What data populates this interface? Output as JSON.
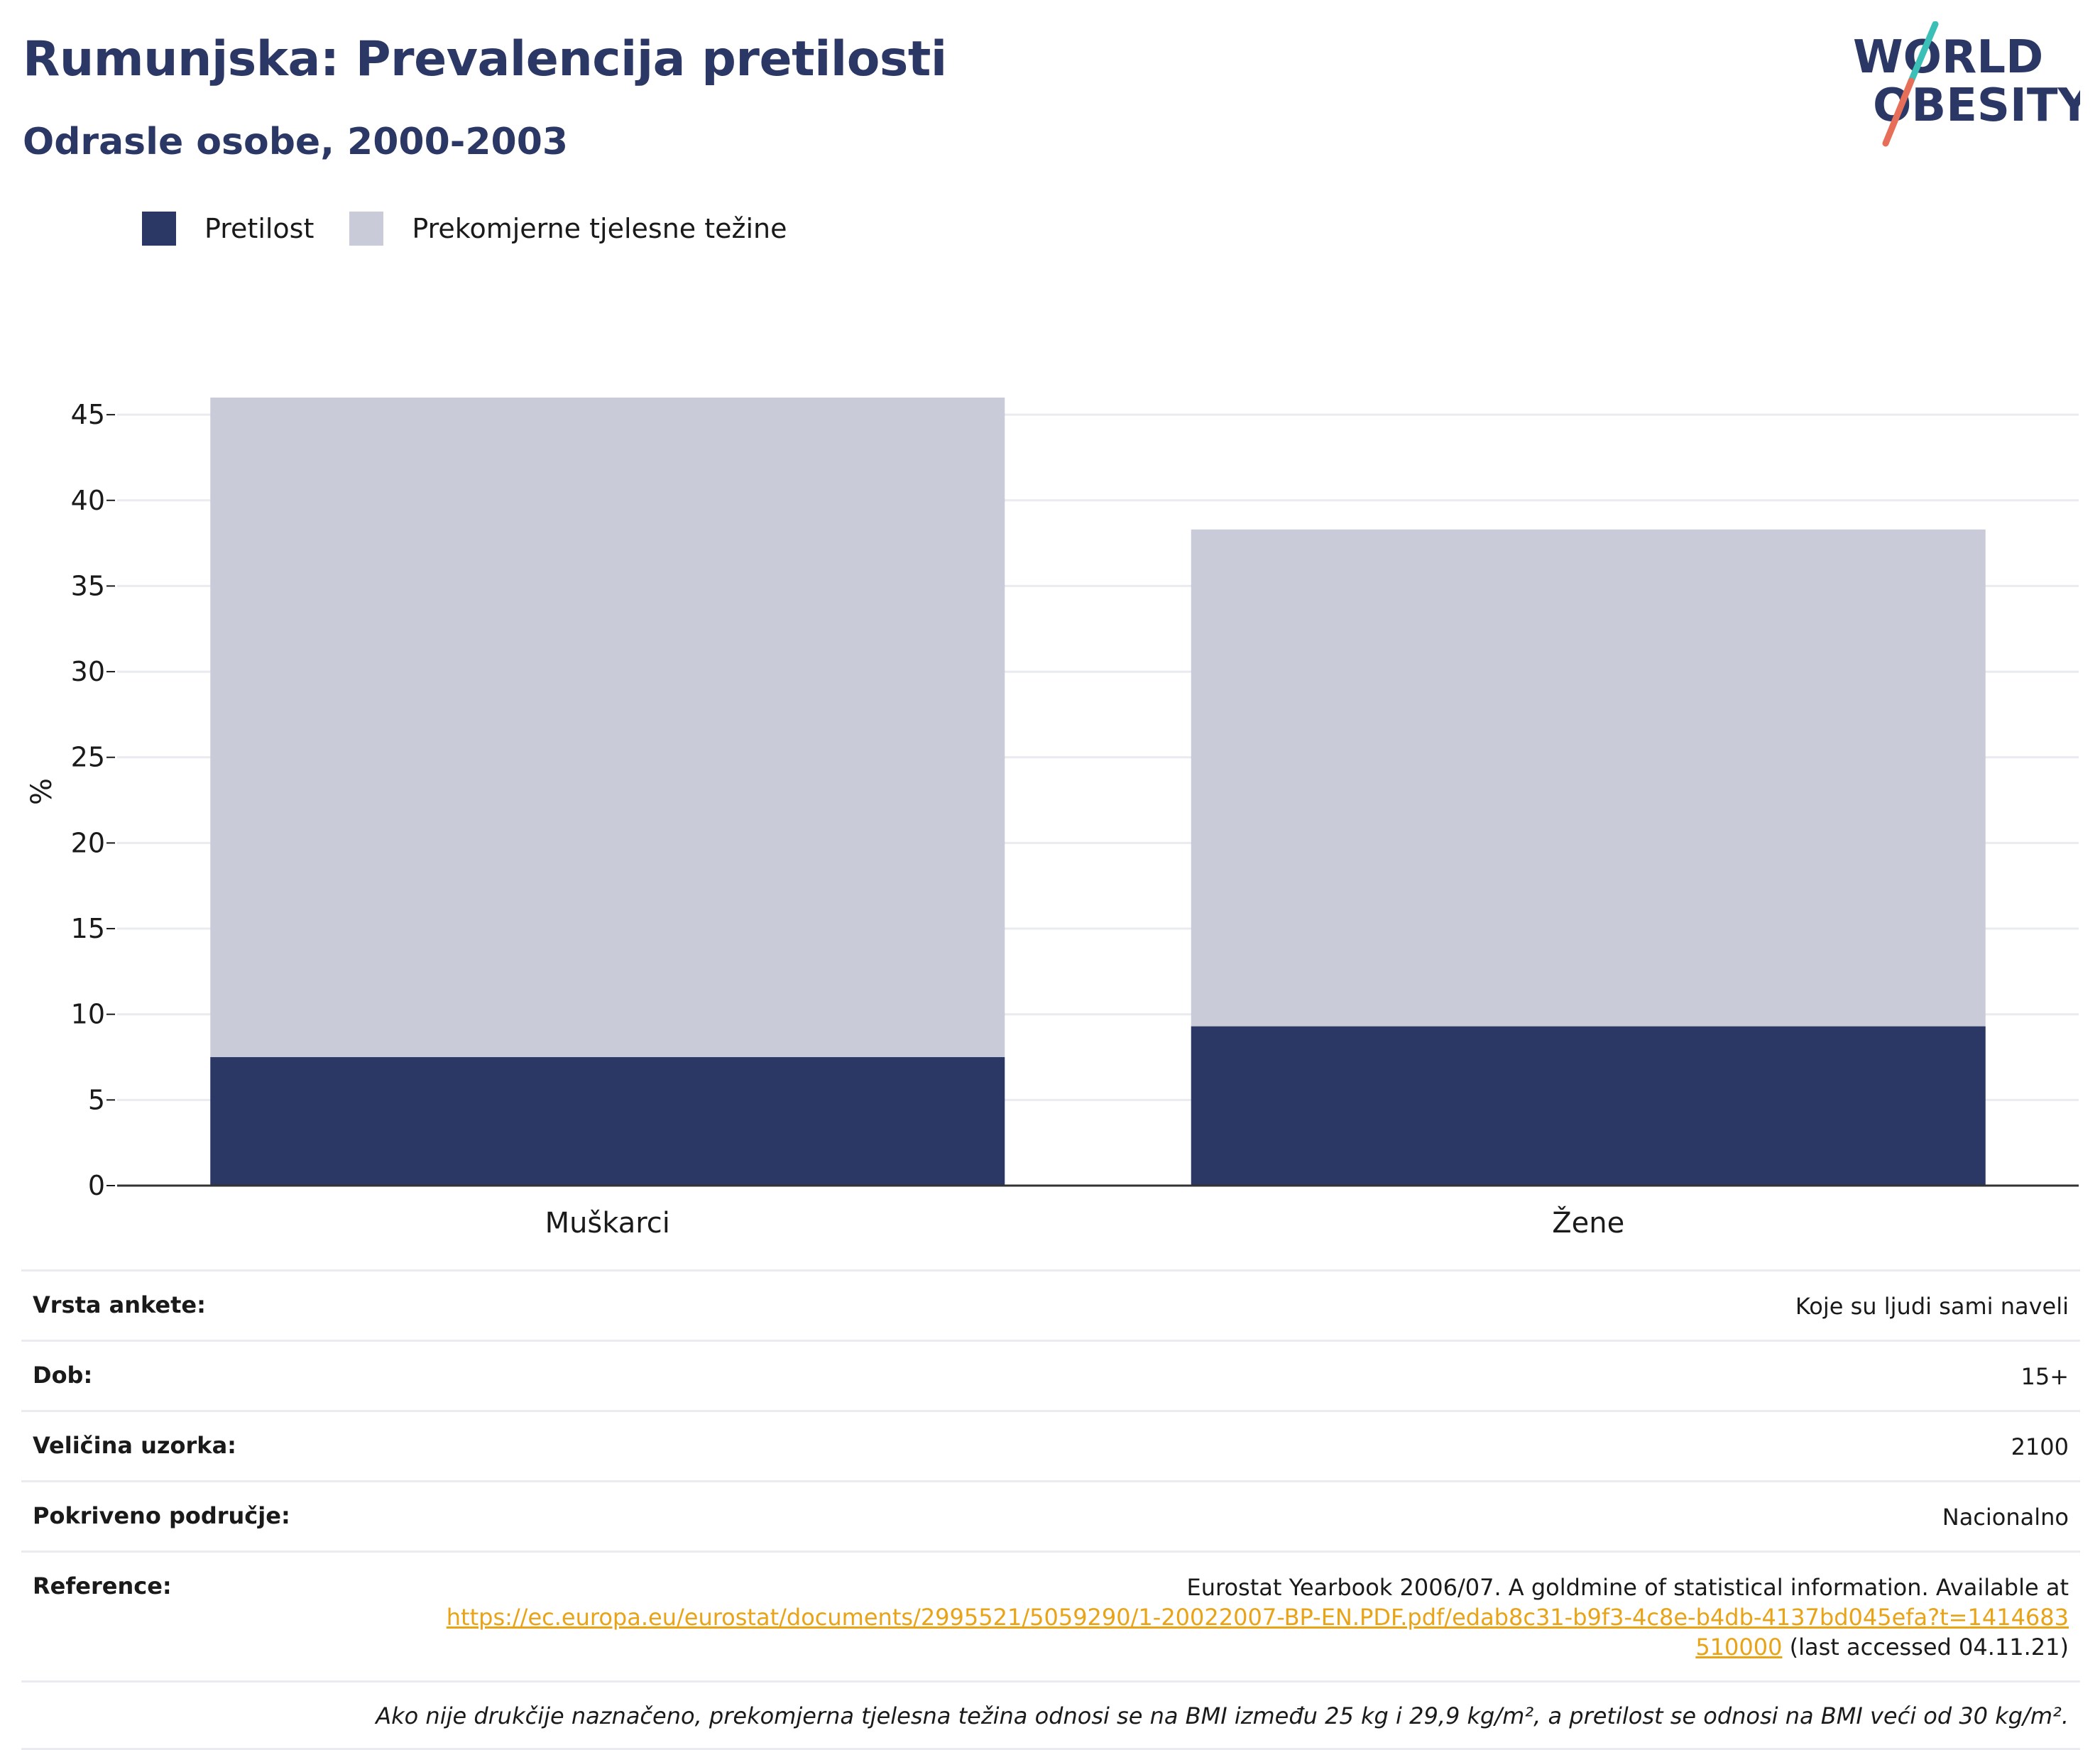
{
  "header": {
    "title": "Rumunjska: Prevalencija pretilosti",
    "subtitle": "Odrasle osobe, 2000-2003"
  },
  "logo": {
    "line1": "WORLD",
    "line2": "OBESITY"
  },
  "colors": {
    "obesity": "#2b3764",
    "overweight": "#c9ccd8",
    "title": "#2b3764",
    "link": "#e8a317"
  },
  "chart_data": {
    "type": "bar",
    "stacked": true,
    "categories": [
      "Muškarci",
      "Žene"
    ],
    "series": [
      {
        "name": "Pretilost",
        "values": [
          7.5,
          9.3
        ]
      },
      {
        "name": "Prekomjerne tjelesne težine",
        "values": [
          38.5,
          29.0
        ]
      }
    ],
    "xlabel": "",
    "ylabel": "%",
    "ylim": [
      0,
      46
    ],
    "yticks": [
      0,
      5,
      10,
      15,
      20,
      25,
      30,
      35,
      40,
      45
    ],
    "grid": true,
    "legend": "top-left"
  },
  "meta": {
    "rows": [
      {
        "key": "Vrsta ankete:",
        "value": "Koje su ljudi sami naveli"
      },
      {
        "key": "Dob:",
        "value": "15+"
      },
      {
        "key": "Veličina uzorka:",
        "value": "2100"
      },
      {
        "key": "Pokriveno područje:",
        "value": "Nacionalno"
      }
    ],
    "reference": {
      "key": "Reference:",
      "text": "Eurostat Yearbook 2006/07. A goldmine of statistical information. Available at",
      "link": "https://ec.europa.eu/eurostat/documents/2995521/5059290/1-20022007-BP-EN.PDF.pdf/edab8c31-b9f3-4c8e-b4db-4137bd045efa?t=1414683510000",
      "suffix": "(last accessed 04.11.21)"
    },
    "note": "Ako nije drukčije naznačeno, prekomjerna tjelesna težina odnosi se na BMI između 25 kg i 29,9 kg/m², a pretilost se odnosi na BMI veći od 30 kg/m²."
  }
}
